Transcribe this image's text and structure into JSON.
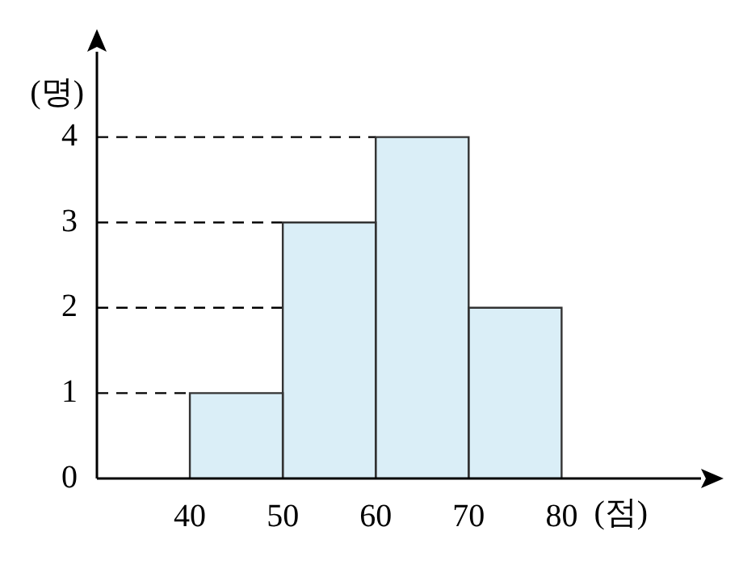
{
  "chart_data": {
    "type": "histogram",
    "bins": [
      40,
      50,
      60,
      70,
      80
    ],
    "values": [
      1,
      3,
      4,
      2
    ],
    "color": "#daeef7",
    "xlabel": "(점)",
    "ylabel": "(명)",
    "xlim": [
      30,
      95
    ],
    "ylim": [
      0,
      5
    ],
    "xticks": [
      40,
      50,
      60,
      70,
      80
    ],
    "yticks": [
      0,
      1,
      2,
      3,
      4
    ],
    "grid": false,
    "legend": false,
    "ref_lines": [
      {
        "axis": "y",
        "value": 1,
        "line_style": "dashed"
      },
      {
        "axis": "y",
        "value": 2,
        "line_style": "dashed"
      },
      {
        "axis": "y",
        "value": 3,
        "line_style": "dashed"
      },
      {
        "axis": "y",
        "value": 4,
        "line_style": "dashed"
      }
    ]
  }
}
